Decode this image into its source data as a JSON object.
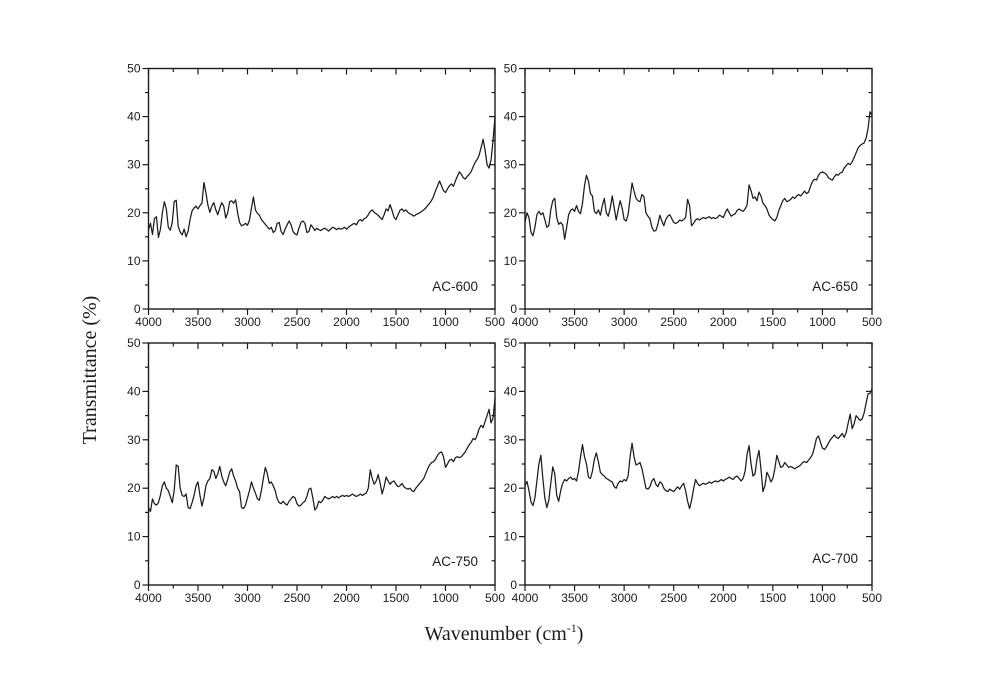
{
  "labels": {
    "y_axis": "Transmittance (%)",
    "x_axis_main": "Wavenumber (cm",
    "x_axis_sup": "-1",
    "x_axis_close": ")"
  },
  "style": {
    "line_color": "#1c1c1c",
    "background": "#ffffff"
  },
  "axes": {
    "x_range": [
      4000,
      500
    ],
    "y_range": [
      0,
      50
    ],
    "x_tick_values": [
      4000,
      3500,
      3000,
      2500,
      2000,
      1500,
      1000,
      500
    ],
    "x_tick_labels": [
      "4000",
      "3500",
      "3000",
      "2500",
      "2000",
      "1500",
      "1000",
      "500"
    ],
    "x_minor_values": [
      3750,
      3250,
      2750,
      2250,
      1750,
      1250,
      750
    ],
    "y_tick_values": [
      0,
      10,
      20,
      30,
      40,
      50
    ],
    "y_tick_labels": [
      "0",
      "10",
      "20",
      "30",
      "40",
      "50"
    ],
    "y_minor_values": [
      5,
      15,
      25,
      35,
      45
    ],
    "grid": false
  },
  "chart_data": [
    {
      "type": "line",
      "title": "AC-600",
      "xlabel": "Wavenumber (cm-1)",
      "ylabel": "Transmittance (%)",
      "xlim": [
        4000,
        500
      ],
      "ylim": [
        0,
        50
      ],
      "x_start": 4000,
      "x_end": 500,
      "values": [
        16.5,
        17.8,
        15.5,
        18.8,
        19.2,
        14.9,
        16.5,
        20.0,
        22.3,
        20.8,
        17.0,
        16.4,
        18.0,
        22.4,
        22.6,
        17.2,
        16.0,
        15.4,
        16.6,
        15.0,
        16.2,
        18.6,
        20.4,
        21.0,
        21.4,
        20.8,
        21.5,
        22.0,
        26.3,
        24.2,
        21.6,
        20.1,
        21.4,
        22.1,
        20.6,
        19.6,
        21.0,
        22.1,
        21.4,
        18.9,
        20.0,
        22.3,
        22.5,
        22.0,
        22.7,
        20.0,
        18.0,
        17.3,
        17.5,
        17.8,
        17.4,
        18.5,
        21.0,
        23.3,
        20.6,
        19.9,
        19.5,
        18.6,
        18.1,
        17.6,
        17.1,
        16.6,
        17.0,
        15.9,
        16.3,
        17.8,
        18.0,
        16.1,
        15.5,
        16.6,
        17.5,
        18.3,
        17.5,
        16.1,
        15.6,
        15.4,
        16.8,
        18.0,
        18.3,
        17.8,
        15.9,
        16.1,
        17.5,
        17.0,
        16.3,
        16.8,
        16.5,
        16.3,
        16.6,
        16.8,
        16.5,
        16.2,
        16.6,
        17.0,
        16.8,
        16.5,
        16.8,
        16.6,
        16.7,
        17.0,
        16.6,
        17.0,
        17.3,
        17.6,
        17.8,
        17.5,
        18.3,
        18.6,
        18.3,
        18.8,
        19.0,
        19.6,
        20.3,
        20.6,
        20.1,
        19.8,
        19.5,
        19.0,
        18.6,
        19.6,
        20.8,
        20.4,
        21.7,
        20.5,
        19.1,
        18.6,
        19.6,
        20.5,
        20.8,
        20.3,
        20.6,
        20.1,
        19.8,
        19.6,
        19.3,
        19.6,
        19.8,
        20.0,
        20.3,
        20.6,
        21.0,
        21.5,
        22.0,
        22.6,
        23.5,
        24.6,
        25.6,
        26.6,
        25.6,
        24.6,
        24.2,
        25.0,
        25.6,
        26.0,
        25.5,
        26.6,
        27.6,
        28.5,
        28.0,
        27.3,
        27.0,
        27.6,
        28.0,
        28.6,
        29.6,
        30.5,
        31.1,
        32.0,
        33.6,
        35.3,
        33.0,
        30.0,
        29.3,
        31.0,
        35.0,
        40.0
      ]
    },
    {
      "type": "line",
      "title": "AC-650",
      "xlabel": "Wavenumber (cm-1)",
      "ylabel": "Transmittance (%)",
      "xlim": [
        4000,
        500
      ],
      "ylim": [
        0,
        50
      ],
      "x_start": 4000,
      "x_end": 500,
      "values": [
        18.0,
        20.0,
        19.0,
        16.0,
        15.2,
        17.0,
        19.6,
        20.3,
        19.6,
        20.0,
        18.6,
        17.0,
        17.3,
        20.6,
        22.5,
        23.0,
        19.0,
        17.6,
        18.0,
        17.5,
        14.5,
        17.0,
        19.6,
        20.5,
        20.8,
        20.3,
        21.5,
        20.3,
        19.8,
        22.0,
        25.6,
        27.8,
        26.6,
        24.0,
        23.5,
        20.3,
        19.8,
        20.6,
        19.5,
        21.5,
        23.0,
        20.0,
        19.3,
        21.0,
        23.5,
        21.0,
        18.5,
        20.6,
        22.5,
        21.0,
        18.6,
        18.3,
        19.6,
        23.0,
        26.2,
        24.5,
        23.0,
        22.5,
        22.3,
        23.8,
        23.3,
        20.0,
        19.3,
        18.8,
        17.0,
        16.2,
        16.3,
        17.6,
        19.5,
        18.3,
        17.3,
        18.6,
        19.3,
        19.6,
        18.8,
        18.0,
        17.8,
        18.0,
        18.5,
        18.3,
        18.6,
        19.0,
        22.8,
        21.5,
        17.3,
        17.8,
        18.5,
        18.8,
        18.5,
        18.8,
        19.0,
        18.8,
        19.0,
        19.2,
        18.8,
        19.0,
        18.8,
        19.0,
        19.5,
        19.3,
        19.0,
        20.0,
        20.8,
        20.0,
        19.3,
        19.6,
        19.8,
        20.5,
        20.8,
        20.5,
        20.3,
        20.8,
        21.6,
        25.8,
        24.6,
        23.0,
        23.3,
        22.5,
        24.3,
        23.5,
        22.0,
        21.5,
        20.8,
        19.6,
        19.0,
        18.6,
        18.3,
        19.0,
        20.5,
        21.5,
        22.5,
        23.0,
        22.3,
        22.5,
        22.8,
        23.3,
        23.0,
        23.5,
        23.8,
        23.5,
        24.0,
        24.5,
        24.0,
        24.3,
        25.5,
        26.5,
        27.0,
        26.8,
        27.8,
        28.3,
        28.5,
        28.3,
        28.0,
        27.3,
        27.0,
        26.8,
        27.5,
        28.0,
        27.8,
        28.3,
        28.5,
        29.3,
        29.8,
        30.3,
        30.0,
        30.6,
        31.5,
        32.5,
        33.5,
        34.0,
        34.3,
        34.5,
        35.5,
        37.5,
        41.0,
        40.3
      ]
    },
    {
      "type": "line",
      "title": "AC-750",
      "xlabel": "Wavenumber (cm-1)",
      "ylabel": "Transmittance (%)",
      "xlim": [
        4000,
        500
      ],
      "ylim": [
        0,
        50
      ],
      "x_start": 4000,
      "x_end": 500,
      "values": [
        16.0,
        15.2,
        17.8,
        16.8,
        16.5,
        17.0,
        18.5,
        20.5,
        21.3,
        20.0,
        19.5,
        18.3,
        17.0,
        19.6,
        24.8,
        24.5,
        20.0,
        18.5,
        18.3,
        18.8,
        16.0,
        15.8,
        17.0,
        18.5,
        20.5,
        21.3,
        18.5,
        16.3,
        18.0,
        20.5,
        21.5,
        22.0,
        23.8,
        23.5,
        22.0,
        23.0,
        24.5,
        22.5,
        21.3,
        20.5,
        21.8,
        23.3,
        24.0,
        22.5,
        21.5,
        20.0,
        19.3,
        16.0,
        15.8,
        16.5,
        18.0,
        19.5,
        21.3,
        20.0,
        19.0,
        17.8,
        17.5,
        19.5,
        22.0,
        24.3,
        23.0,
        21.0,
        21.3,
        20.5,
        19.5,
        17.8,
        17.0,
        16.8,
        17.3,
        16.8,
        16.5,
        17.3,
        17.8,
        18.3,
        18.0,
        16.8,
        16.3,
        16.5,
        17.0,
        17.3,
        18.3,
        19.8,
        20.0,
        18.0,
        15.5,
        16.0,
        17.3,
        17.0,
        17.5,
        18.3,
        18.0,
        17.8,
        18.0,
        18.3,
        18.0,
        18.3,
        18.0,
        18.3,
        18.5,
        18.3,
        18.5,
        18.3,
        18.5,
        18.8,
        18.5,
        18.3,
        18.5,
        18.8,
        18.5,
        18.8,
        19.0,
        20.0,
        23.8,
        22.0,
        20.8,
        21.5,
        22.8,
        21.0,
        18.8,
        20.3,
        22.3,
        21.5,
        20.8,
        21.3,
        21.5,
        20.8,
        20.3,
        20.5,
        21.0,
        20.3,
        20.0,
        19.8,
        20.0,
        19.5,
        19.3,
        20.0,
        20.5,
        21.0,
        21.5,
        22.0,
        23.0,
        24.0,
        24.8,
        25.3,
        25.5,
        26.0,
        26.8,
        27.3,
        27.5,
        26.5,
        24.3,
        25.0,
        25.8,
        26.0,
        25.5,
        26.3,
        26.5,
        26.3,
        26.5,
        27.0,
        27.5,
        28.3,
        29.0,
        29.5,
        30.3,
        30.0,
        31.0,
        32.3,
        33.0,
        32.5,
        33.8,
        35.0,
        36.3,
        33.5,
        34.5,
        38.5
      ]
    },
    {
      "type": "line",
      "title": "AC-700",
      "xlabel": "Wavenumber (cm-1)",
      "ylabel": "Transmittance (%)",
      "xlim": [
        4000,
        500
      ],
      "ylim": [
        0,
        50
      ],
      "x_start": 4000,
      "x_end": 500,
      "values": [
        20.5,
        21.4,
        19.5,
        17.2,
        16.4,
        18.0,
        21.5,
        25.0,
        26.8,
        22.0,
        18.0,
        16.0,
        17.5,
        21.0,
        24.4,
        23.0,
        18.5,
        17.3,
        19.5,
        21.0,
        21.8,
        21.5,
        22.0,
        22.3,
        21.8,
        22.0,
        21.5,
        23.5,
        26.5,
        29.0,
        26.5,
        25.0,
        22.3,
        22.0,
        23.5,
        26.0,
        27.3,
        25.5,
        23.3,
        22.8,
        22.5,
        22.0,
        21.8,
        21.5,
        21.3,
        20.3,
        20.0,
        21.0,
        21.5,
        21.3,
        21.8,
        21.5,
        22.5,
        26.5,
        29.3,
        26.5,
        24.8,
        25.0,
        25.3,
        24.0,
        22.0,
        20.0,
        19.8,
        20.3,
        21.5,
        22.0,
        20.8,
        20.3,
        21.3,
        21.0,
        20.0,
        19.5,
        19.3,
        19.8,
        19.5,
        19.3,
        19.8,
        20.3,
        19.8,
        20.5,
        21.0,
        19.5,
        17.3,
        15.8,
        17.5,
        19.8,
        21.8,
        21.0,
        20.5,
        20.8,
        21.0,
        20.8,
        21.0,
        21.3,
        21.0,
        21.3,
        21.5,
        21.3,
        21.5,
        21.8,
        21.5,
        21.8,
        22.0,
        22.3,
        22.0,
        21.8,
        22.3,
        22.5,
        22.0,
        21.5,
        22.0,
        23.5,
        27.0,
        28.8,
        25.0,
        22.5,
        23.0,
        26.0,
        27.8,
        24.0,
        19.3,
        20.5,
        23.3,
        22.5,
        21.3,
        22.0,
        24.0,
        26.8,
        25.5,
        24.3,
        24.5,
        25.3,
        24.8,
        24.3,
        24.5,
        24.3,
        24.0,
        24.3,
        24.5,
        24.8,
        25.3,
        25.5,
        25.3,
        25.8,
        26.3,
        27.0,
        28.5,
        30.3,
        30.8,
        29.5,
        28.3,
        28.0,
        28.5,
        29.3,
        30.0,
        30.5,
        31.0,
        30.5,
        30.3,
        30.8,
        31.3,
        30.5,
        31.5,
        33.5,
        35.3,
        32.3,
        33.3,
        35.0,
        34.5,
        34.0,
        34.3,
        35.5,
        37.5,
        39.5,
        39.6,
        40.5
      ]
    }
  ]
}
